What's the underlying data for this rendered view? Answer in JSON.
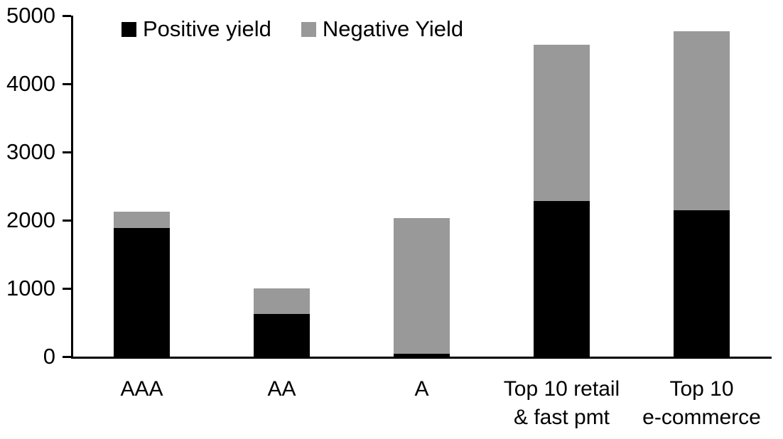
{
  "chart_data": {
    "type": "bar",
    "stacked": true,
    "title": "",
    "xlabel": "",
    "ylabel": "",
    "categories": [
      "AAA",
      "AA",
      "A",
      "Top 10 retail\n& fast pmt",
      "Top 10\ne-commerce"
    ],
    "series": [
      {
        "name": "Positive yield",
        "color": "#000000",
        "values": [
          1890,
          620,
          40,
          2280,
          2150
        ]
      },
      {
        "name": "Negative Yield",
        "color": "#999999",
        "values": [
          230,
          385,
          1990,
          2290,
          2620
        ]
      }
    ],
    "totals": [
      2120,
      1005,
      2030,
      4570,
      4770
    ],
    "ylim": [
      0,
      5000
    ],
    "yticks": [
      0,
      1000,
      2000,
      3000,
      4000,
      5000
    ],
    "grid": false,
    "legend_position": "top",
    "axis_color": "#000000",
    "background_color": "#ffffff"
  }
}
